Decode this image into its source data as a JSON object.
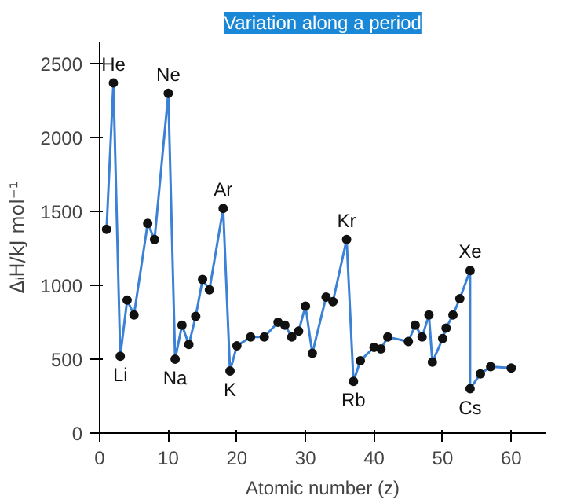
{
  "chart_data": {
    "type": "line",
    "title": "Variation along a period",
    "xlabel": "Atomic number (z)",
    "ylabel": "ΔᵢH/kJ mol⁻¹",
    "x": [
      1,
      2,
      3,
      4,
      5,
      7,
      8,
      10,
      11,
      12,
      13,
      14,
      15,
      16,
      18,
      19,
      20,
      22,
      24,
      26,
      27,
      28,
      29,
      30,
      31,
      33,
      34,
      36,
      37,
      38,
      40,
      41,
      42,
      45,
      46,
      47,
      48,
      48.5,
      50,
      50.5,
      51.5,
      52.5,
      54,
      54,
      55.5,
      57,
      60
    ],
    "series": [
      {
        "color": "#3b82d6",
        "values": [
          1380,
          2370,
          520,
          900,
          800,
          1420,
          1310,
          2300,
          500,
          730,
          600,
          790,
          1040,
          970,
          1520,
          420,
          590,
          650,
          650,
          750,
          730,
          650,
          690,
          860,
          540,
          920,
          890,
          1310,
          350,
          490,
          580,
          570,
          650,
          620,
          730,
          650,
          800,
          480,
          640,
          710,
          800,
          910,
          1100,
          300,
          400,
          450,
          440
        ]
      }
    ],
    "xlim": [
      0,
      65
    ],
    "ylim": [
      0,
      2650
    ],
    "xticks": [
      0,
      10,
      20,
      30,
      40,
      50,
      60
    ],
    "yticks": [
      0,
      500,
      1000,
      1500,
      2000,
      2500
    ],
    "marker": "circle",
    "grid": false,
    "annotations": [
      {
        "text": "He",
        "x": 2,
        "y": 2370
      },
      {
        "text": "Ne",
        "x": 10,
        "y": 2300
      },
      {
        "text": "Ar",
        "x": 18,
        "y": 1520
      },
      {
        "text": "Kr",
        "x": 36,
        "y": 1310
      },
      {
        "text": "Xe",
        "x": 54,
        "y": 1100
      },
      {
        "text": "Li",
        "x": 3,
        "y": 520
      },
      {
        "text": "Na",
        "x": 11,
        "y": 500
      },
      {
        "text": "K",
        "x": 19,
        "y": 420
      },
      {
        "text": "Rb",
        "x": 37,
        "y": 350
      },
      {
        "text": "Cs",
        "x": 54,
        "y": 300
      }
    ]
  }
}
